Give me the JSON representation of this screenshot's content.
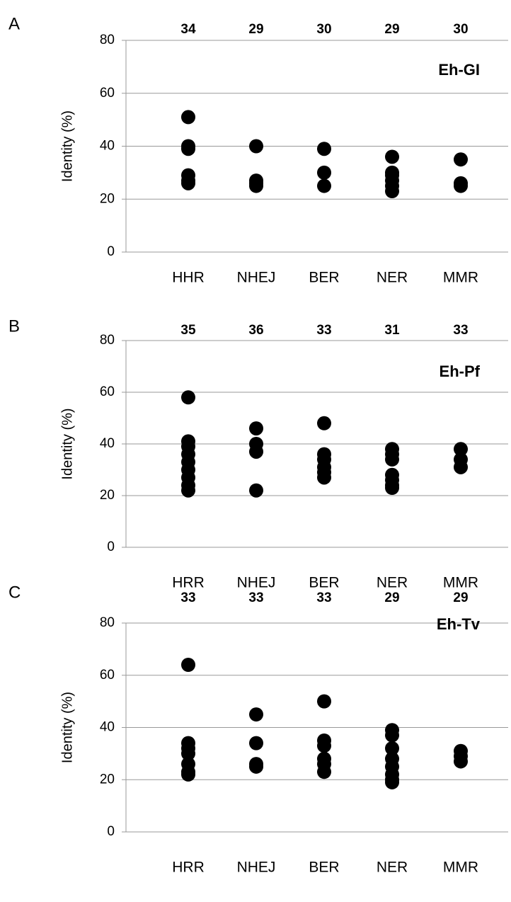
{
  "chart_data": [
    {
      "type": "strip",
      "panel_label": "A",
      "label": "Eh-GI",
      "y_label": "Identity (%)",
      "categories": [
        "HHR",
        "NHEJ",
        "BER",
        "NER",
        "MMR"
      ],
      "top_labels": [
        34,
        29,
        30,
        29,
        30
      ],
      "values": [
        [
          51,
          40,
          39,
          29,
          27,
          26
        ],
        [
          40,
          27,
          26,
          25
        ],
        [
          39,
          30,
          25
        ],
        [
          36,
          30,
          29,
          27,
          25,
          23
        ],
        [
          35,
          26,
          25
        ]
      ],
      "color": "#000000",
      "ylim": [
        0,
        80
      ],
      "yticks": [
        0,
        20,
        40,
        60,
        80
      ],
      "grid": true
    },
    {
      "type": "strip",
      "panel_label": "B",
      "label": "Eh-Pf",
      "y_label": "Identity (%)",
      "categories": [
        "HRR",
        "NHEJ",
        "BER",
        "NER",
        "MMR"
      ],
      "top_labels": [
        35,
        36,
        33,
        31,
        33
      ],
      "values": [
        [
          58,
          41,
          39,
          36,
          33,
          30,
          27,
          24,
          22
        ],
        [
          46,
          40,
          37,
          22
        ],
        [
          48,
          36,
          34,
          31,
          29,
          27
        ],
        [
          38,
          36,
          34,
          28,
          26,
          24,
          23
        ],
        [
          38,
          34,
          31
        ]
      ],
      "color": "#000000",
      "ylim": [
        0,
        80
      ],
      "yticks": [
        0,
        20,
        40,
        60,
        80
      ],
      "grid": true
    },
    {
      "type": "strip",
      "panel_label": "C",
      "label": "Eh-Tv",
      "y_label": "Identity (%)",
      "categories": [
        "HRR",
        "NHEJ",
        "BER",
        "NER",
        "MMR"
      ],
      "top_labels": [
        33,
        33,
        33,
        29,
        29
      ],
      "values": [
        [
          64,
          34,
          32,
          30,
          26,
          23,
          22
        ],
        [
          45,
          34,
          26,
          25
        ],
        [
          50,
          35,
          33,
          28,
          26,
          23
        ],
        [
          39,
          37,
          32,
          28,
          25,
          22,
          20,
          19
        ],
        [
          31,
          29,
          27
        ]
      ],
      "color": "#000000",
      "ylim": [
        0,
        80
      ],
      "yticks": [
        0,
        20,
        40,
        60,
        80
      ],
      "grid": true
    }
  ]
}
